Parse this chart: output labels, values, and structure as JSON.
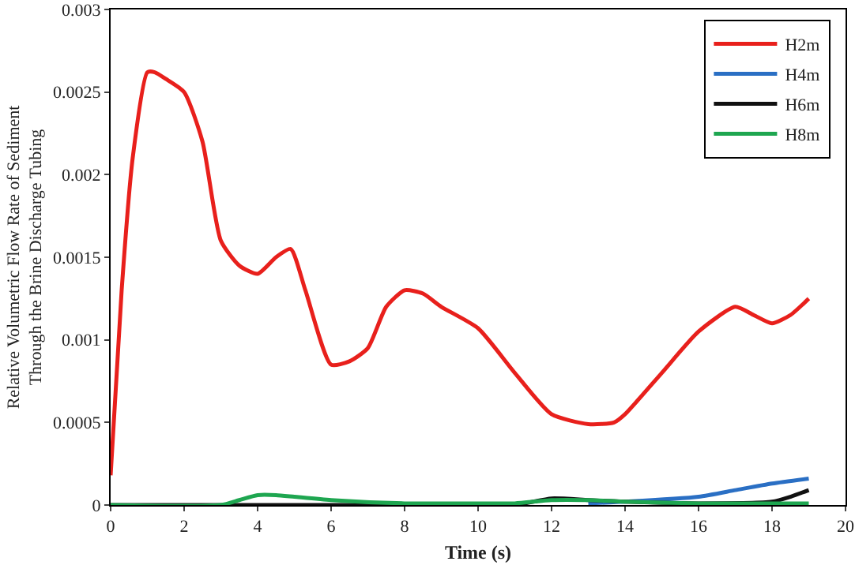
{
  "chart_data": {
    "type": "line",
    "xlabel": "Time (s)",
    "ylabel": "Relative Volumetric Flow Rate of Sediment\nThrough the Brine Discharge Tubing",
    "xlim": [
      0,
      20
    ],
    "xticks": [
      0,
      2,
      4,
      6,
      8,
      10,
      12,
      14,
      16,
      18,
      20
    ],
    "ylim": [
      0,
      0.003
    ],
    "yticks": [
      0,
      0.0005,
      0.001,
      0.0015,
      0.002,
      0.0025,
      0.003
    ],
    "grid": false,
    "legend": "top right",
    "marker": "none",
    "line_style": "solid",
    "series": [
      {
        "name": "H2m",
        "color": "#e8201c",
        "x": [
          0,
          0.3,
          0.6,
          1,
          1.2,
          1.5,
          2,
          2.5,
          3,
          3.5,
          4,
          4.5,
          4.9,
          5.3,
          6,
          6.5,
          7,
          7.5,
          8,
          8.5,
          9,
          10,
          11,
          12,
          13,
          13.7,
          14,
          15,
          16,
          17,
          17.5,
          18,
          18.5,
          19
        ],
        "values": [
          0.00018,
          0.0013,
          0.0021,
          0.00262,
          0.00262,
          0.00258,
          0.0025,
          0.0022,
          0.0016,
          0.00145,
          0.0014,
          0.0015,
          0.00155,
          0.0013,
          0.00085,
          0.00087,
          0.00095,
          0.0012,
          0.0013,
          0.00128,
          0.0012,
          0.00107,
          0.0008,
          0.00055,
          0.00049,
          0.0005,
          0.00055,
          0.0008,
          0.00105,
          0.0012,
          0.00115,
          0.0011,
          0.00115,
          0.00125
        ]
      },
      {
        "name": "H4m",
        "color": "#2a6fc4",
        "x": [
          13,
          14,
          16,
          17,
          18,
          19
        ],
        "values": [
          1e-05,
          2e-05,
          5e-05,
          9e-05,
          0.00013,
          0.00016
        ]
      },
      {
        "name": "H6m",
        "color": "#111111",
        "x": [
          0,
          4,
          8,
          11,
          12,
          13,
          14,
          16,
          18,
          18.5,
          19
        ],
        "values": [
          0,
          0,
          0,
          0,
          4e-05,
          3e-05,
          2e-05,
          1e-05,
          2e-05,
          5e-05,
          9e-05
        ]
      },
      {
        "name": "H8m",
        "color": "#1ea650",
        "x": [
          0,
          3,
          3.5,
          4,
          4.5,
          5,
          6,
          8,
          10,
          11,
          12,
          13,
          14,
          16,
          19
        ],
        "values": [
          0,
          0,
          3e-05,
          6e-05,
          6e-05,
          5e-05,
          3e-05,
          1e-05,
          1e-05,
          1e-05,
          3e-05,
          3e-05,
          2e-05,
          1e-05,
          1e-05
        ]
      }
    ]
  }
}
